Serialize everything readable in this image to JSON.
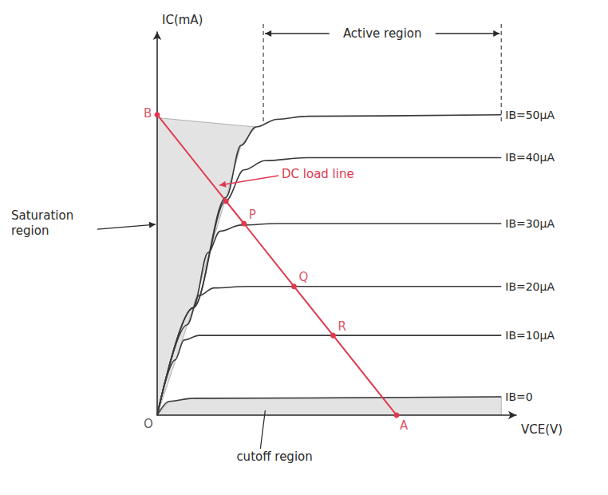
{
  "chart_data": {
    "type": "line",
    "x_label": "VCE(V)",
    "y_label": "IC(mA)",
    "xlim": [
      0,
      12
    ],
    "ylim": [
      0,
      12.5
    ],
    "tick_labels": false,
    "grid": false,
    "series": [
      {
        "name": "IB=50μA",
        "color": "#3a3a3a",
        "x": [
          0,
          1.2,
          2.3,
          2.8,
          3.3,
          4,
          5,
          11.5
        ],
        "values": [
          0,
          3.5,
          7.1,
          8.8,
          9.4,
          9.65,
          9.75,
          9.8
        ]
      },
      {
        "name": "IB=40μA",
        "color": "#3a3a3a",
        "x": [
          0,
          1.2,
          2.3,
          2.9,
          3.6,
          5,
          11.5
        ],
        "values": [
          0,
          3.5,
          7.0,
          8.0,
          8.3,
          8.4,
          8.4
        ]
      },
      {
        "name": "IB=30μA",
        "color": "#3a3a3a",
        "x": [
          0,
          1.2,
          1.7,
          2.1,
          2.8,
          4,
          11.5
        ],
        "values": [
          0,
          3.5,
          5.3,
          6.0,
          6.2,
          6.25,
          6.25
        ]
      },
      {
        "name": "IB=20μA",
        "color": "#3a3a3a",
        "x": [
          0,
          1.0,
          1.4,
          1.9,
          3,
          11.5
        ],
        "values": [
          0,
          2.95,
          3.9,
          4.15,
          4.2,
          4.2
        ]
      },
      {
        "name": "IB=10μA",
        "color": "#3a3a3a",
        "x": [
          0,
          0.6,
          0.9,
          1.4,
          3,
          11.5
        ],
        "values": [
          0,
          1.8,
          2.45,
          2.6,
          2.6,
          2.6
        ]
      },
      {
        "name": "IB=0",
        "color": "#3a3a3a",
        "x": [
          0,
          0.4,
          1.2,
          11.5
        ],
        "values": [
          0,
          0.45,
          0.55,
          0.6
        ]
      },
      {
        "name": "DC load line",
        "color": "#e0394f",
        "marker": "circle",
        "x": [
          0,
          2.3,
          2.9,
          4.57,
          5.88,
          8
        ],
        "values": [
          9.8,
          6.98,
          6.25,
          4.2,
          2.6,
          0
        ]
      }
    ],
    "annotations": [
      {
        "text": "B",
        "x": 0,
        "y": 9.8,
        "color": "#d0283e"
      },
      {
        "text": "P",
        "x": 2.9,
        "y": 6.25,
        "color": "#d0283e"
      },
      {
        "text": "Q",
        "x": 4.57,
        "y": 4.2,
        "color": "#d0283e"
      },
      {
        "text": "R",
        "x": 5.88,
        "y": 2.6,
        "color": "#d0283e"
      },
      {
        "text": "A",
        "x": 8,
        "y": 0,
        "color": "#d0283e"
      },
      {
        "text": "O",
        "x": 0,
        "y": 0,
        "color": "#333333"
      }
    ],
    "regions": [
      {
        "text": "Active region",
        "x": [
          3.55,
          11.5
        ]
      },
      {
        "text": "Saturation region",
        "x": [
          0,
          1.2,
          2.3,
          2.8,
          3.3,
          0
        ],
        "y": [
          0,
          3.5,
          7.1,
          8.8,
          9.4,
          9.7
        ]
      },
      {
        "text": "cutoff region",
        "x": [
          0,
          11.5,
          11.5,
          1.2,
          0.4
        ],
        "y": [
          0,
          0,
          0.6,
          0.55,
          0.45
        ]
      }
    ]
  }
}
